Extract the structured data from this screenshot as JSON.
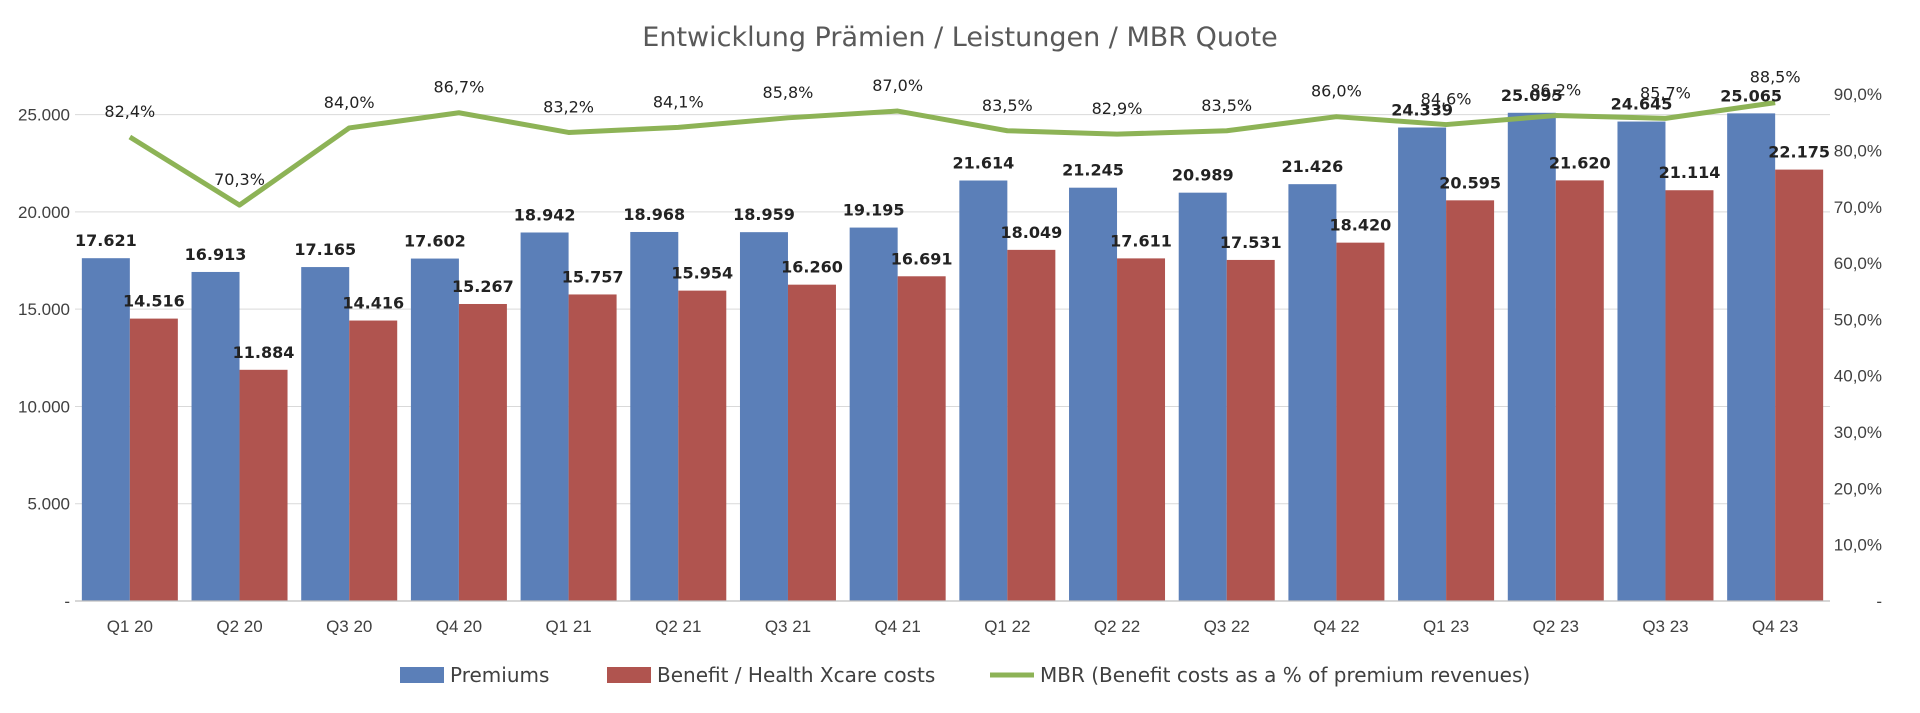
{
  "chart_data": {
    "type": "bar",
    "title": "Entwicklung Prämien / Leistungen / MBR Quote",
    "categories": [
      "Q1 20",
      "Q2 20",
      "Q3 20",
      "Q4 20",
      "Q1 21",
      "Q2 21",
      "Q3 21",
      "Q4 21",
      "Q1 22",
      "Q2 22",
      "Q3 22",
      "Q4 22",
      "Q1 23",
      "Q2 23",
      "Q3 23",
      "Q4 23"
    ],
    "series": [
      {
        "name": "Premiums",
        "type": "bar",
        "axis": "left",
        "color": "#5B7FB8",
        "values": [
          17621,
          16913,
          17165,
          17602,
          18942,
          18968,
          18959,
          19195,
          21614,
          21245,
          20989,
          21426,
          24339,
          25095,
          24645,
          25065
        ],
        "labels": [
          "17.621",
          "16.913",
          "17.165",
          "17.602",
          "18.942",
          "18.968",
          "18.959",
          "19.195",
          "21.614",
          "21.245",
          "20.989",
          "21.426",
          "24.339",
          "25.095",
          "24.645",
          "25.065"
        ]
      },
      {
        "name": "Benefit  / Health Xcare costs",
        "type": "bar",
        "axis": "left",
        "color": "#B0544F",
        "values": [
          14516,
          11884,
          14416,
          15267,
          15757,
          15954,
          16260,
          16691,
          18049,
          17611,
          17531,
          18420,
          20595,
          21620,
          21114,
          22175
        ],
        "labels": [
          "14.516",
          "11.884",
          "14.416",
          "15.267",
          "15.757",
          "15.954",
          "16.260",
          "16.691",
          "18.049",
          "17.611",
          "17.531",
          "18.420",
          "20.595",
          "21.620",
          "21.114",
          "22.175"
        ]
      },
      {
        "name": "MBR (Benefit costs as a % of premium revenues)",
        "type": "line",
        "axis": "right",
        "color": "#8DB356",
        "values": [
          82.4,
          70.3,
          84.0,
          86.7,
          83.2,
          84.1,
          85.8,
          87.0,
          83.5,
          82.9,
          83.5,
          86.0,
          84.6,
          86.2,
          85.7,
          88.5
        ],
        "labels": [
          "82,4%",
          "70,3%",
          "84,0%",
          "86,7%",
          "83,2%",
          "84,1%",
          "85,8%",
          "87,0%",
          "83,5%",
          "82,9%",
          "83,5%",
          "86,0%",
          "84,6%",
          "86,2%",
          "85,7%",
          "88,5%"
        ]
      }
    ],
    "y_left": {
      "ylim": [
        0,
        27500
      ],
      "ticks": [
        0,
        5000,
        10000,
        15000,
        20000,
        25000
      ],
      "tick_labels": [
        "-",
        "5.000",
        "10.000",
        "15.000",
        "20.000",
        "25.000"
      ]
    },
    "y_right": {
      "ylim": [
        0,
        95
      ],
      "ticks": [
        0,
        10,
        20,
        30,
        40,
        50,
        60,
        70,
        80,
        90
      ],
      "tick_labels": [
        "-",
        "10,0%",
        "20,0%",
        "30,0%",
        "40,0%",
        "50,0%",
        "60,0%",
        "70,0%",
        "80,0%",
        "90,0%"
      ]
    },
    "grid": true,
    "legend": "bottom",
    "colors": {
      "grid": "#D9D9D9",
      "axis": "#BFBFBF",
      "title": "#595959",
      "tick": "#404040"
    }
  }
}
